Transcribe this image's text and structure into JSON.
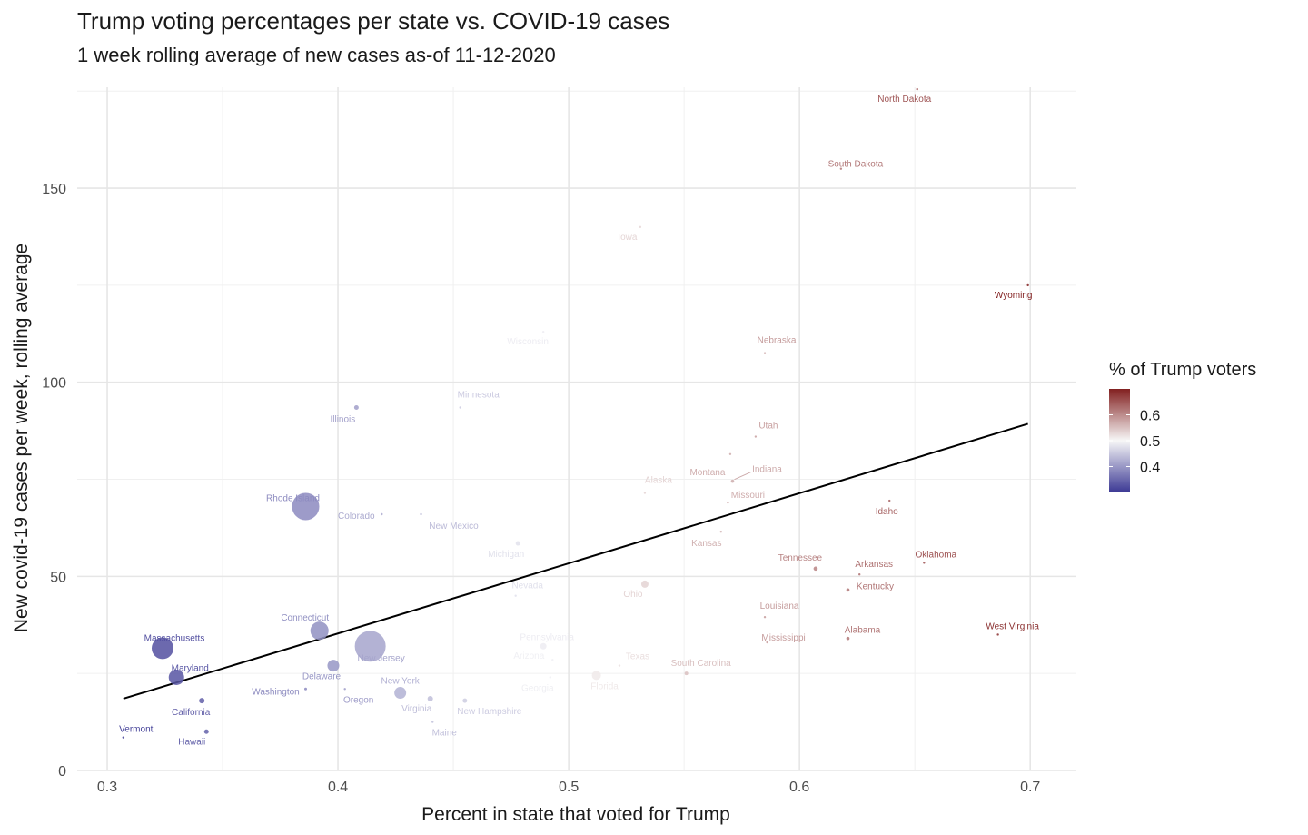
{
  "title": "Trump voting percentages per state vs. COVID-19 cases",
  "subtitle": "1 week rolling average of new cases as-of 11-12-2020",
  "chart_data": {
    "type": "scatter",
    "xlabel": "Percent in state that voted for Trump",
    "ylabel": "New covid-19 cases per week, rolling average",
    "xlim": [
      0.287,
      0.72
    ],
    "ylim": [
      0,
      176
    ],
    "x_ticks": [
      0.3,
      0.4,
      0.5,
      0.6,
      0.7
    ],
    "x_tick_labels": [
      "0.3",
      "0.4",
      "0.5",
      "0.6",
      "0.7"
    ],
    "y_ticks": [
      0,
      50,
      100,
      150
    ],
    "y_tick_labels": [
      "0",
      "50",
      "100",
      "150"
    ],
    "grid": true,
    "legend": {
      "title": "% of Trump voters",
      "placement": "right",
      "range": [
        0.3,
        0.7
      ],
      "ticks": [
        0.4,
        0.5,
        0.6
      ],
      "tick_labels": [
        "0.4",
        "0.5",
        "0.6"
      ],
      "colors": {
        "low": "#3b3894",
        "mid": "#f7f7f7",
        "high": "#822020"
      }
    },
    "trend_line": {
      "x": [
        0.307,
        0.699
      ],
      "y": [
        18.5,
        89.3
      ],
      "color": "#000000"
    },
    "points": [
      {
        "state": "North Dakota",
        "x": 0.651,
        "y": 175.5,
        "size": 1.0
      },
      {
        "state": "South Dakota",
        "x": 0.618,
        "y": 155.0,
        "size": 1.0
      },
      {
        "state": "Iowa",
        "x": 0.531,
        "y": 140.0,
        "size": 1.0
      },
      {
        "state": "Wyoming",
        "x": 0.699,
        "y": 125.0,
        "size": 1.0
      },
      {
        "state": "Wisconsin",
        "x": 0.489,
        "y": 113.0,
        "size": 1.0
      },
      {
        "state": "Nebraska",
        "x": 0.585,
        "y": 107.5,
        "size": 1.0
      },
      {
        "state": "Illinois",
        "x": 0.408,
        "y": 93.5,
        "size": 2.5
      },
      {
        "state": "Minnesota",
        "x": 0.453,
        "y": 93.5,
        "size": 1.0
      },
      {
        "state": "Utah",
        "x": 0.581,
        "y": 86.0,
        "size": 1.0
      },
      {
        "state": "Montana",
        "x": 0.57,
        "y": 81.5,
        "size": 1.0
      },
      {
        "state": "Indiana",
        "x": 0.571,
        "y": 74.5,
        "size": 1.8
      },
      {
        "state": "Alaska",
        "x": 0.533,
        "y": 71.5,
        "size": 1.0
      },
      {
        "state": "Missouri",
        "x": 0.569,
        "y": 69.0,
        "size": 1.0
      },
      {
        "state": "Idaho",
        "x": 0.639,
        "y": 69.5,
        "size": 1.0
      },
      {
        "state": "Rhode Island",
        "x": 0.386,
        "y": 68.0,
        "size": 15.0
      },
      {
        "state": "Colorado",
        "x": 0.419,
        "y": 66.0,
        "size": 1.0
      },
      {
        "state": "New Mexico",
        "x": 0.436,
        "y": 66.0,
        "size": 1.0
      },
      {
        "state": "Kansas",
        "x": 0.566,
        "y": 61.5,
        "size": 1.0
      },
      {
        "state": "Michigan",
        "x": 0.478,
        "y": 58.5,
        "size": 2.5
      },
      {
        "state": "Tennessee",
        "x": 0.607,
        "y": 52.0,
        "size": 2.3
      },
      {
        "state": "Oklahoma",
        "x": 0.654,
        "y": 53.5,
        "size": 1.0
      },
      {
        "state": "Arkansas",
        "x": 0.626,
        "y": 50.5,
        "size": 1.0
      },
      {
        "state": "Ohio",
        "x": 0.533,
        "y": 48.0,
        "size": 4.0
      },
      {
        "state": "Kentucky",
        "x": 0.621,
        "y": 46.5,
        "size": 1.8
      },
      {
        "state": "Nevada",
        "x": 0.477,
        "y": 45.0,
        "size": 1.0
      },
      {
        "state": "Louisiana",
        "x": 0.585,
        "y": 39.5,
        "size": 1.0
      },
      {
        "state": "Connecticut",
        "x": 0.392,
        "y": 36.0,
        "size": 10.0
      },
      {
        "state": "West Virginia",
        "x": 0.686,
        "y": 35.0,
        "size": 1.0
      },
      {
        "state": "Alabama",
        "x": 0.621,
        "y": 34.0,
        "size": 1.8
      },
      {
        "state": "Mississippi",
        "x": 0.586,
        "y": 33.0,
        "size": 1.0
      },
      {
        "state": "New Jersey",
        "x": 0.414,
        "y": 32.0,
        "size": 17.0
      },
      {
        "state": "Pennsylvania",
        "x": 0.489,
        "y": 32.0,
        "size": 3.5
      },
      {
        "state": "Massachusetts",
        "x": 0.324,
        "y": 31.5,
        "size": 12.0
      },
      {
        "state": "Arizona",
        "x": 0.493,
        "y": 28.5,
        "size": 1.0
      },
      {
        "state": "Texas",
        "x": 0.522,
        "y": 27.0,
        "size": 1.0
      },
      {
        "state": "Delaware",
        "x": 0.398,
        "y": 27.0,
        "size": 6.5
      },
      {
        "state": "South Carolina",
        "x": 0.551,
        "y": 25.0,
        "size": 2.0
      },
      {
        "state": "Florida",
        "x": 0.512,
        "y": 24.5,
        "size": 5.0
      },
      {
        "state": "Maryland",
        "x": 0.33,
        "y": 24.0,
        "size": 8.5
      },
      {
        "state": "Georgia",
        "x": 0.492,
        "y": 24.0,
        "size": 1.0
      },
      {
        "state": "Washington",
        "x": 0.386,
        "y": 21.0,
        "size": 1.5
      },
      {
        "state": "Oregon",
        "x": 0.403,
        "y": 21.0,
        "size": 1.0
      },
      {
        "state": "New York",
        "x": 0.427,
        "y": 20.0,
        "size": 6.5
      },
      {
        "state": "Virginia",
        "x": 0.44,
        "y": 18.5,
        "size": 3.0
      },
      {
        "state": "California",
        "x": 0.341,
        "y": 18.0,
        "size": 3.0
      },
      {
        "state": "New Hampshire",
        "x": 0.455,
        "y": 18.0,
        "size": 2.5
      },
      {
        "state": "Maine",
        "x": 0.441,
        "y": 12.5,
        "size": 1.0
      },
      {
        "state": "Hawaii",
        "x": 0.343,
        "y": 10.0,
        "size": 2.5
      },
      {
        "state": "Vermont",
        "x": 0.307,
        "y": 8.5,
        "size": 1.0
      }
    ]
  }
}
